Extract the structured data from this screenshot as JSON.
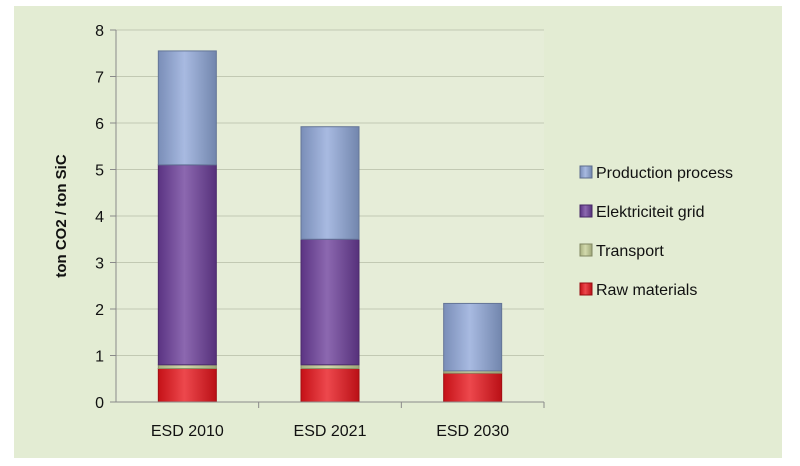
{
  "chart_data": {
    "type": "bar",
    "stacked": true,
    "title": "",
    "xlabel": "",
    "ylabel": "ton CO2 / ton SiC",
    "ylim": [
      0,
      8
    ],
    "yticks": [
      0,
      1,
      2,
      3,
      4,
      5,
      6,
      7,
      8
    ],
    "grid": true,
    "legend_position": "right",
    "categories": [
      "ESD 2010",
      "ESD 2021",
      "ESD 2030"
    ],
    "series": [
      {
        "name": "Raw materials",
        "color": "#e8141b",
        "values": [
          0.72,
          0.72,
          0.62
        ]
      },
      {
        "name": "Transport",
        "color": "#c6cf96",
        "values": [
          0.08,
          0.08,
          0.05
        ]
      },
      {
        "name": "Elektriciteit grid",
        "color": "#6b3d9a",
        "values": [
          4.3,
          2.7,
          0.0
        ]
      },
      {
        "name": "Production process",
        "color": "#8fa7d8",
        "values": [
          2.45,
          2.42,
          1.45
        ]
      }
    ],
    "legend_order": [
      "Production process",
      "Elektriciteit grid",
      "Transport",
      "Raw materials"
    ]
  }
}
